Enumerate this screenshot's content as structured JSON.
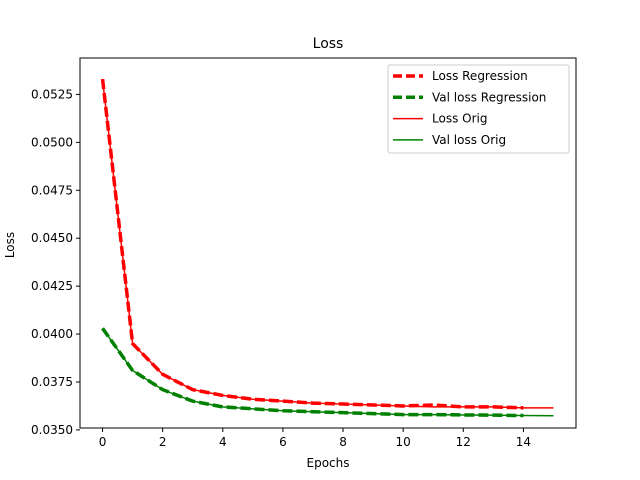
{
  "chart_data": {
    "type": "line",
    "title": "Loss",
    "xlabel": "Epochs",
    "ylabel": "Loss",
    "xlim": [
      -0.75,
      15.75
    ],
    "ylim": [
      0.0351,
      0.0544
    ],
    "xticks": [
      0,
      2,
      4,
      6,
      8,
      10,
      12,
      14
    ],
    "xtick_labels": [
      "0",
      "2",
      "4",
      "6",
      "8",
      "10",
      "12",
      "14"
    ],
    "yticks": [
      0.035,
      0.0375,
      0.04,
      0.0425,
      0.045,
      0.0475,
      0.05,
      0.0525
    ],
    "ytick_labels": [
      "0.0350",
      "0.0375",
      "0.0400",
      "0.0425",
      "0.0450",
      "0.0475",
      "0.0500",
      "0.0525"
    ],
    "grid": false,
    "legend_position": "top-right",
    "series": [
      {
        "name": "Loss Regression",
        "color": "#ff0000",
        "style": "dashed-thick",
        "x": [
          0,
          1,
          2,
          3,
          4,
          5,
          6,
          7,
          8,
          9,
          10,
          11,
          12,
          13,
          14
        ],
        "y": [
          0.0533,
          0.0395,
          0.0379,
          0.0371,
          0.0368,
          0.0366,
          0.0365,
          0.0364,
          0.03635,
          0.0363,
          0.03625,
          0.0363,
          0.0362,
          0.0362,
          0.03615
        ]
      },
      {
        "name": "Val loss Regression",
        "color": "#008000",
        "style": "dashed-thick",
        "x": [
          0,
          1,
          2,
          3,
          4,
          5,
          6,
          7,
          8,
          9,
          10,
          11,
          12,
          13,
          14
        ],
        "y": [
          0.0403,
          0.0381,
          0.0371,
          0.0365,
          0.0362,
          0.0361,
          0.036,
          0.03595,
          0.0359,
          0.03585,
          0.0358,
          0.0358,
          0.03578,
          0.03577,
          0.03575
        ]
      },
      {
        "name": "Loss Orig",
        "color": "#ff0000",
        "style": "solid",
        "x": [
          0,
          1,
          2,
          3,
          4,
          5,
          6,
          7,
          8,
          9,
          10,
          11,
          12,
          13,
          14,
          15
        ],
        "y": [
          0.0533,
          0.0395,
          0.0379,
          0.0371,
          0.0368,
          0.0366,
          0.0365,
          0.0364,
          0.03635,
          0.0363,
          0.03625,
          0.0362,
          0.0362,
          0.0362,
          0.03615,
          0.03615
        ]
      },
      {
        "name": "Val loss Orig",
        "color": "#008000",
        "style": "solid",
        "x": [
          0,
          1,
          2,
          3,
          4,
          5,
          6,
          7,
          8,
          9,
          10,
          11,
          12,
          13,
          14,
          15
        ],
        "y": [
          0.0403,
          0.0381,
          0.0371,
          0.0365,
          0.0362,
          0.0361,
          0.036,
          0.03595,
          0.0359,
          0.03585,
          0.0358,
          0.0358,
          0.03578,
          0.03577,
          0.03575,
          0.03574
        ]
      }
    ]
  }
}
